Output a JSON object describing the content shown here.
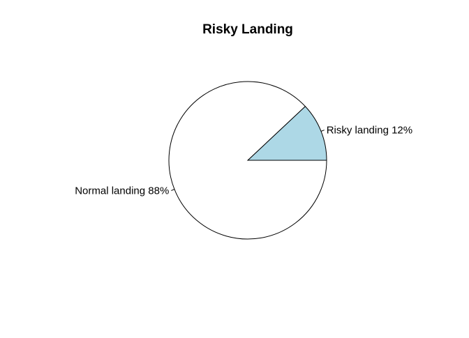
{
  "chart_data": {
    "type": "pie",
    "title": "Risky Landing",
    "start_angle_deg": 0,
    "direction": "counterclockwise",
    "slices": [
      {
        "label": "Risky landing 12%",
        "category": "Risky landing",
        "value": 12,
        "color": "#add8e6"
      },
      {
        "label": "Normal landing 88%",
        "category": "Normal landing",
        "value": 88,
        "color": "#ffffff"
      }
    ],
    "border_color": "#000000",
    "legend": "none"
  }
}
